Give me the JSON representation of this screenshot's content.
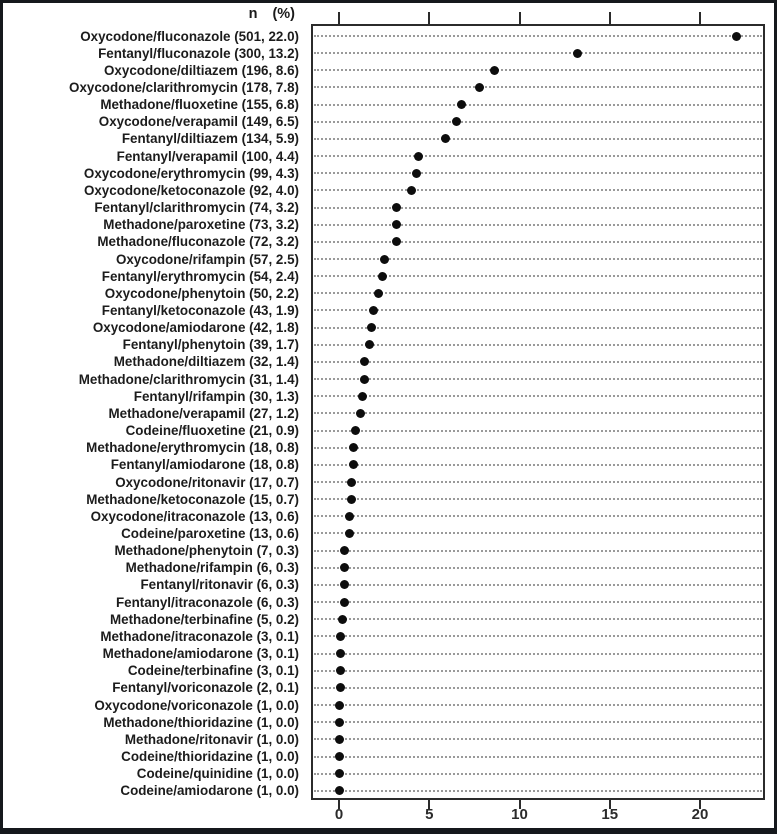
{
  "header": {
    "n_label": "n",
    "pct_label": "(%)"
  },
  "chart_data": {
    "type": "scatter",
    "subtype": "horizontal-dot-plot",
    "title": "",
    "xlabel": "",
    "ylabel": "",
    "xlim": [
      -1.55,
      23.6
    ],
    "x_ticks": [
      0,
      5,
      10,
      15,
      20
    ],
    "grid": "dotted horizontal line per row",
    "dot_color": "#0d0d0d",
    "rows": [
      {
        "label": "Oxycodone/fluconazole",
        "n": 501,
        "pct": 22.0
      },
      {
        "label": "Fentanyl/fluconazole",
        "n": 300,
        "pct": 13.2
      },
      {
        "label": "Oxycodone/diltiazem",
        "n": 196,
        "pct": 8.6
      },
      {
        "label": "Oxycodone/clarithromycin",
        "n": 178,
        "pct": 7.8
      },
      {
        "label": "Methadone/fluoxetine",
        "n": 155,
        "pct": 6.8
      },
      {
        "label": "Oxycodone/verapamil",
        "n": 149,
        "pct": 6.5
      },
      {
        "label": "Fentanyl/diltiazem",
        "n": 134,
        "pct": 5.9
      },
      {
        "label": "Fentanyl/verapamil",
        "n": 100,
        "pct": 4.4
      },
      {
        "label": "Oxycodone/erythromycin",
        "n": 99,
        "pct": 4.3
      },
      {
        "label": "Oxycodone/ketoconazole",
        "n": 92,
        "pct": 4.0
      },
      {
        "label": "Fentanyl/clarithromycin",
        "n": 74,
        "pct": 3.2
      },
      {
        "label": "Methadone/paroxetine",
        "n": 73,
        "pct": 3.2
      },
      {
        "label": "Methadone/fluconazole",
        "n": 72,
        "pct": 3.2
      },
      {
        "label": "Oxycodone/rifampin",
        "n": 57,
        "pct": 2.5
      },
      {
        "label": "Fentanyl/erythromycin",
        "n": 54,
        "pct": 2.4
      },
      {
        "label": "Oxycodone/phenytoin",
        "n": 50,
        "pct": 2.2
      },
      {
        "label": "Fentanyl/ketoconazole",
        "n": 43,
        "pct": 1.9
      },
      {
        "label": "Oxycodone/amiodarone",
        "n": 42,
        "pct": 1.8
      },
      {
        "label": "Fentanyl/phenytoin",
        "n": 39,
        "pct": 1.7
      },
      {
        "label": "Methadone/diltiazem",
        "n": 32,
        "pct": 1.4
      },
      {
        "label": "Methadone/clarithromycin",
        "n": 31,
        "pct": 1.4
      },
      {
        "label": "Fentanyl/rifampin",
        "n": 30,
        "pct": 1.3
      },
      {
        "label": "Methadone/verapamil",
        "n": 27,
        "pct": 1.2
      },
      {
        "label": "Codeine/fluoxetine",
        "n": 21,
        "pct": 0.9
      },
      {
        "label": "Methadone/erythromycin",
        "n": 18,
        "pct": 0.8
      },
      {
        "label": "Fentanyl/amiodarone",
        "n": 18,
        "pct": 0.8
      },
      {
        "label": "Oxycodone/ritonavir",
        "n": 17,
        "pct": 0.7
      },
      {
        "label": "Methadone/ketoconazole",
        "n": 15,
        "pct": 0.7
      },
      {
        "label": "Oxycodone/itraconazole",
        "n": 13,
        "pct": 0.6
      },
      {
        "label": "Codeine/paroxetine",
        "n": 13,
        "pct": 0.6
      },
      {
        "label": "Methadone/phenytoin",
        "n": 7,
        "pct": 0.3
      },
      {
        "label": "Methadone/rifampin",
        "n": 6,
        "pct": 0.3
      },
      {
        "label": "Fentanyl/ritonavir",
        "n": 6,
        "pct": 0.3
      },
      {
        "label": "Fentanyl/itraconazole",
        "n": 6,
        "pct": 0.3
      },
      {
        "label": "Methadone/terbinafine",
        "n": 5,
        "pct": 0.2
      },
      {
        "label": "Methadone/itraconazole",
        "n": 3,
        "pct": 0.1
      },
      {
        "label": "Methadone/amiodarone",
        "n": 3,
        "pct": 0.1
      },
      {
        "label": "Codeine/terbinafine",
        "n": 3,
        "pct": 0.1
      },
      {
        "label": "Fentanyl/voriconazole",
        "n": 2,
        "pct": 0.1
      },
      {
        "label": "Oxycodone/voriconazole",
        "n": 1,
        "pct": 0.0
      },
      {
        "label": "Methadone/thioridazine",
        "n": 1,
        "pct": 0.0
      },
      {
        "label": "Methadone/ritonavir",
        "n": 1,
        "pct": 0.0
      },
      {
        "label": "Codeine/thioridazine",
        "n": 1,
        "pct": 0.0
      },
      {
        "label": "Codeine/quinidine",
        "n": 1,
        "pct": 0.0
      },
      {
        "label": "Codeine/amiodarone",
        "n": 1,
        "pct": 0.0
      }
    ]
  }
}
